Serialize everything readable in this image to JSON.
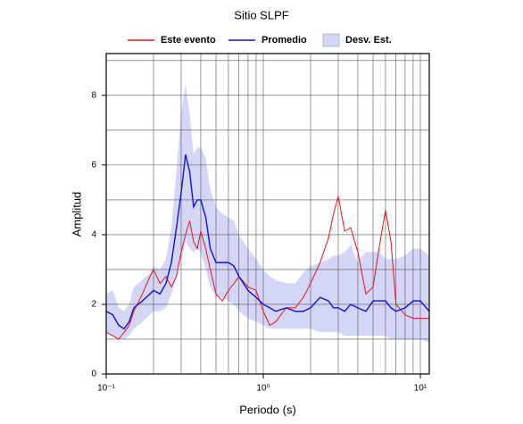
{
  "chart_data": {
    "type": "line",
    "title": "Sitio SLPF",
    "xlabel": "Periodo (s)",
    "ylabel": "Amplitud",
    "x": [
      0.1,
      0.11,
      0.12,
      0.13,
      0.14,
      0.15,
      0.17,
      0.19,
      0.2,
      0.22,
      0.24,
      0.26,
      0.28,
      0.3,
      0.32,
      0.34,
      0.36,
      0.38,
      0.4,
      0.43,
      0.46,
      0.5,
      0.55,
      0.6,
      0.65,
      0.7,
      0.8,
      0.9,
      1.0,
      1.1,
      1.2,
      1.4,
      1.6,
      1.8,
      2.0,
      2.3,
      2.6,
      2.8,
      3.0,
      3.3,
      3.6,
      4.0,
      4.5,
      5.0,
      5.5,
      6.0,
      6.5,
      7.0,
      8.0,
      9.0,
      10,
      11.4
    ],
    "series": [
      {
        "name": "Este evento",
        "color": "#e8141c",
        "values": [
          1.2,
          1.1,
          1.0,
          1.2,
          1.4,
          1.8,
          2.3,
          2.8,
          3.0,
          2.6,
          2.8,
          2.5,
          2.8,
          3.5,
          4.0,
          4.4,
          3.8,
          3.6,
          4.1,
          3.6,
          3.0,
          2.3,
          2.1,
          2.4,
          2.6,
          2.8,
          2.5,
          2.4,
          1.8,
          1.4,
          1.5,
          1.9,
          1.9,
          2.2,
          2.6,
          3.2,
          3.9,
          4.6,
          5.1,
          4.1,
          4.2,
          3.5,
          2.3,
          2.5,
          3.7,
          4.7,
          3.8,
          2.0,
          1.7,
          1.6,
          1.6,
          1.6
        ]
      },
      {
        "name": "Promedio",
        "color": "#1010e0",
        "values": [
          1.8,
          1.7,
          1.4,
          1.3,
          1.5,
          1.9,
          2.1,
          2.3,
          2.4,
          2.3,
          2.6,
          3.2,
          4.2,
          5.2,
          6.3,
          5.8,
          4.8,
          5.0,
          5.0,
          4.5,
          3.6,
          3.2,
          3.2,
          3.2,
          3.1,
          2.8,
          2.4,
          2.2,
          2.0,
          1.9,
          1.8,
          1.9,
          1.8,
          1.8,
          1.9,
          2.2,
          2.1,
          1.9,
          1.9,
          1.8,
          2.0,
          1.9,
          1.8,
          2.1,
          2.1,
          2.1,
          1.9,
          1.8,
          1.9,
          2.1,
          2.1,
          1.8
        ]
      },
      {
        "name": "Desv. Est.",
        "color": "#d4d6f7",
        "lower": [
          1.2,
          1.1,
          1.0,
          1.0,
          1.1,
          1.3,
          1.5,
          1.7,
          1.8,
          1.8,
          1.9,
          2.3,
          2.8,
          3.3,
          3.8,
          3.6,
          3.5,
          3.6,
          3.5,
          3.0,
          2.5,
          2.2,
          2.2,
          2.1,
          2.0,
          1.8,
          1.6,
          1.5,
          1.4,
          1.3,
          1.3,
          1.3,
          1.3,
          1.3,
          1.3,
          1.2,
          1.2,
          1.2,
          1.2,
          1.1,
          1.1,
          1.1,
          1.1,
          1.1,
          1.1,
          1.1,
          1.0,
          1.0,
          1.0,
          1.0,
          1.0,
          0.9
        ],
        "upper": [
          2.3,
          2.4,
          1.9,
          1.8,
          2.0,
          2.5,
          2.7,
          2.9,
          3.1,
          3.0,
          3.3,
          4.2,
          5.8,
          7.5,
          8.3,
          7.5,
          6.3,
          6.5,
          6.5,
          6.2,
          5.3,
          4.8,
          4.6,
          4.5,
          4.4,
          4.0,
          3.6,
          3.3,
          3.0,
          2.8,
          2.7,
          2.6,
          2.6,
          2.9,
          3.1,
          3.2,
          3.3,
          3.4,
          3.4,
          3.5,
          3.7,
          3.2,
          3.5,
          3.5,
          3.5,
          3.3,
          3.3,
          3.3,
          3.4,
          3.6,
          3.6,
          3.4
        ]
      }
    ],
    "xscale": "log",
    "xlim": [
      0.1,
      11.4
    ],
    "xticks": [
      {
        "value": 0.1,
        "label": "10⁻¹"
      },
      {
        "value": 1,
        "label": "10⁰"
      },
      {
        "value": 10,
        "label": "10¹"
      }
    ],
    "xminor": [
      0.2,
      0.3,
      0.4,
      0.5,
      0.6,
      0.7,
      0.8,
      0.9,
      2,
      3,
      4,
      5,
      6,
      7,
      8,
      9
    ],
    "ylim": [
      0,
      9.2
    ],
    "yticks": [
      0,
      2,
      4,
      6,
      8
    ],
    "yminor": [
      1,
      3,
      5,
      7,
      9
    ],
    "grid": true
  }
}
